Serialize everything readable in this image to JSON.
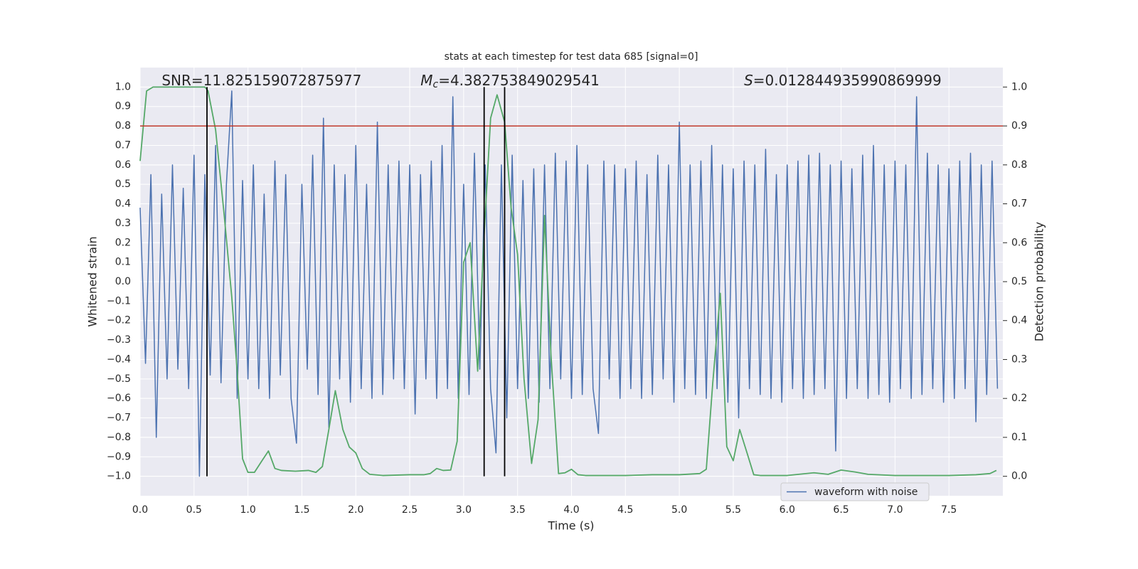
{
  "chart_data": {
    "type": "line",
    "title": "stats at each timestep for test data 685 [signal=0]",
    "xlabel": "Time (s)",
    "ylabel": "Whitened strain",
    "y2label": "Detection probability",
    "annotations": [
      {
        "symbol": "",
        "subscript": "",
        "text": "SNR=11.825159072875977",
        "x": 0.2
      },
      {
        "symbol": "M",
        "subscript": "c",
        "text": "=4.382753849029541",
        "x": 2.6
      },
      {
        "symbol": "S",
        "subscript": "",
        "text": "=0.012844935990869999",
        "x": 5.6
      }
    ],
    "xlim": [
      0,
      8
    ],
    "ylim": [
      -1.1,
      1.1
    ],
    "y2lim": [
      -0.05,
      1.05
    ],
    "xticks": [
      {
        "value": 0,
        "label": "0.0"
      },
      0.5,
      {
        "value": 1,
        "label": "1.0"
      },
      1.5,
      {
        "value": 2,
        "label": "2.0"
      },
      2.5,
      {
        "value": 3,
        "label": "3.0"
      },
      3.5,
      {
        "value": 4,
        "label": "4.0"
      },
      4.5,
      {
        "value": 5,
        "label": "5.0"
      },
      5.5,
      {
        "value": 6,
        "label": "6.0"
      },
      6.5,
      {
        "value": 7,
        "label": "7.0"
      },
      7.5
    ],
    "yticks": [
      {
        "value": 1,
        "label": "1.0"
      },
      0.9,
      0.8,
      0.7,
      0.6,
      0.5,
      0.4,
      0.3,
      0.2,
      0.1,
      {
        "value": 0,
        "label": "0.0"
      },
      {
        "value": -0.1,
        "label": "−0.1"
      },
      {
        "value": -0.2,
        "label": "−0.2"
      },
      {
        "value": -0.3,
        "label": "−0.3"
      },
      {
        "value": -0.4,
        "label": "−0.4"
      },
      {
        "value": -0.5,
        "label": "−0.5"
      },
      {
        "value": -0.6,
        "label": "−0.6"
      },
      {
        "value": -0.7,
        "label": "−0.7"
      },
      {
        "value": -0.8,
        "label": "−0.8"
      },
      {
        "value": -0.9,
        "label": "−0.9"
      },
      {
        "value": -1,
        "label": "−1.0"
      }
    ],
    "y2ticks": [
      {
        "value": 0,
        "label": "0.0"
      },
      0.1,
      0.2,
      0.3,
      0.4,
      0.5,
      0.6,
      0.7,
      0.8,
      0.9,
      {
        "value": 1,
        "label": "1.0"
      }
    ],
    "grid": true,
    "legend": "lower right",
    "vlines": [
      0.62,
      3.19,
      3.38
    ],
    "vline_range": [
      -1,
      1
    ],
    "vline_color": "#000000",
    "hline_y2": 0.9,
    "hline_color": "#c0392b",
    "series": [
      {
        "name": "waveform with noise",
        "color": "#4c72b0",
        "x": [
          0,
          0.05,
          0.1,
          0.15,
          0.2,
          0.25,
          0.3,
          0.35,
          0.4,
          0.45,
          0.5,
          0.55,
          0.6,
          0.65,
          0.7,
          0.75,
          0.8,
          0.85,
          0.9,
          0.95,
          1,
          1.05,
          1.1,
          1.15,
          1.2,
          1.25,
          1.3,
          1.35,
          1.4,
          1.45,
          1.5,
          1.55,
          1.6,
          1.65,
          1.7,
          1.75,
          1.8,
          1.85,
          1.9,
          1.95,
          2,
          2.05,
          2.1,
          2.15,
          2.2,
          2.25,
          2.3,
          2.35,
          2.4,
          2.45,
          2.5,
          2.55,
          2.6,
          2.65,
          2.7,
          2.75,
          2.8,
          2.85,
          2.9,
          2.95,
          3,
          3.05,
          3.1,
          3.15,
          3.2,
          3.25,
          3.3,
          3.35,
          3.4,
          3.45,
          3.5,
          3.55,
          3.6,
          3.65,
          3.7,
          3.75,
          3.8,
          3.85,
          3.9,
          3.95,
          4,
          4.05,
          4.1,
          4.15,
          4.2,
          4.25,
          4.3,
          4.35,
          4.4,
          4.45,
          4.5,
          4.55,
          4.6,
          4.65,
          4.7,
          4.75,
          4.8,
          4.85,
          4.9,
          4.95,
          5,
          5.05,
          5.1,
          5.15,
          5.2,
          5.25,
          5.3,
          5.35,
          5.4,
          5.45,
          5.5,
          5.55,
          5.6,
          5.65,
          5.7,
          5.75,
          5.8,
          5.85,
          5.9,
          5.95,
          6,
          6.05,
          6.1,
          6.15,
          6.2,
          6.25,
          6.3,
          6.35,
          6.4,
          6.45,
          6.5,
          6.55,
          6.6,
          6.65,
          6.7,
          6.75,
          6.8,
          6.85,
          6.9,
          6.95,
          7,
          7.05,
          7.1,
          7.15,
          7.2,
          7.25,
          7.3,
          7.35,
          7.4,
          7.45,
          7.5,
          7.55,
          7.6,
          7.65,
          7.7,
          7.75,
          7.8,
          7.85,
          7.9,
          7.95
        ],
        "values": [
          0.38,
          -0.42,
          0.55,
          -0.8,
          0.45,
          -0.5,
          0.6,
          -0.45,
          0.48,
          -0.55,
          0.65,
          -1.0,
          0.55,
          -0.48,
          0.7,
          -0.52,
          0.5,
          0.98,
          -0.6,
          0.52,
          -0.5,
          0.6,
          -0.55,
          0.45,
          -0.6,
          0.62,
          -0.48,
          0.55,
          -0.6,
          -0.83,
          0.5,
          -0.45,
          0.65,
          -0.58,
          0.84,
          -0.75,
          0.6,
          -0.5,
          0.55,
          -0.62,
          0.7,
          -0.55,
          0.5,
          -0.6,
          0.82,
          -0.58,
          0.6,
          -0.5,
          0.62,
          -0.55,
          0.6,
          -0.68,
          0.55,
          -0.5,
          0.62,
          -0.6,
          0.7,
          -0.55,
          0.95,
          -0.6,
          0.5,
          -0.58,
          0.66,
          -0.45,
          0.6,
          -0.55,
          -0.88,
          0.6,
          -0.7,
          0.65,
          -0.55,
          0.52,
          -0.6,
          0.58,
          -0.62,
          0.6,
          -0.55,
          0.66,
          -0.5,
          0.62,
          -0.6,
          0.7,
          -0.58,
          0.6,
          -0.55,
          -0.78,
          0.62,
          -0.5,
          0.6,
          -0.6,
          0.58,
          -0.55,
          0.62,
          -0.6,
          0.55,
          -0.58,
          0.65,
          -0.5,
          0.6,
          -0.62,
          0.82,
          -0.55,
          0.6,
          -0.58,
          0.62,
          -0.6,
          0.7,
          -0.55,
          0.6,
          -0.62,
          0.58,
          -0.7,
          0.62,
          -0.55,
          0.6,
          -0.58,
          0.68,
          -0.6,
          0.55,
          -0.62,
          0.6,
          -0.55,
          0.62,
          -0.6,
          0.65,
          -0.58,
          0.66,
          -0.55,
          0.6,
          -0.87,
          0.62,
          -0.6,
          0.58,
          -0.55,
          0.65,
          -0.6,
          0.7,
          -0.58,
          0.6,
          -0.62,
          0.62,
          -0.55,
          0.6,
          -0.6,
          0.95,
          -0.58,
          0.66,
          -0.55,
          0.6,
          -0.62,
          0.58,
          -0.6,
          0.62,
          -0.55,
          0.66,
          -0.72,
          0.6,
          -0.58,
          0.62,
          -0.55
        ]
      },
      {
        "color": "#55a868",
        "axis": "y2",
        "x": [
          0,
          0.06,
          0.12,
          0.6,
          0.63,
          0.7,
          0.78,
          0.85,
          0.9,
          0.95,
          1,
          1.06,
          1.13,
          1.19,
          1.25,
          1.31,
          1.44,
          1.56,
          1.63,
          1.69,
          1.75,
          1.81,
          1.88,
          1.94,
          2,
          2.06,
          2.13,
          2.25,
          2.5,
          2.63,
          2.69,
          2.75,
          2.81,
          2.88,
          2.94,
          3,
          3.06,
          3.13,
          3.19,
          3.25,
          3.31,
          3.38,
          3.44,
          3.5,
          3.56,
          3.63,
          3.69,
          3.75,
          3.81,
          3.88,
          3.94,
          4,
          4.06,
          4.13,
          4.5,
          4.75,
          5,
          5.19,
          5.25,
          5.31,
          5.38,
          5.44,
          5.5,
          5.56,
          5.63,
          5.69,
          5.75,
          6,
          6.25,
          6.38,
          6.5,
          6.63,
          6.75,
          7,
          7.5,
          7.75,
          7.88,
          7.94
        ],
        "values": [
          0.81,
          0.99,
          1.0,
          1.0,
          0.99,
          0.89,
          0.67,
          0.46,
          0.27,
          0.045,
          0.01,
          0.01,
          0.04,
          0.065,
          0.02,
          0.015,
          0.013,
          0.015,
          0.01,
          0.025,
          0.12,
          0.22,
          0.12,
          0.075,
          0.06,
          0.02,
          0.005,
          0.002,
          0.004,
          0.004,
          0.007,
          0.02,
          0.015,
          0.016,
          0.09,
          0.55,
          0.6,
          0.27,
          0.62,
          0.92,
          0.98,
          0.91,
          0.69,
          0.57,
          0.25,
          0.033,
          0.145,
          0.67,
          0.31,
          0.007,
          0.009,
          0.018,
          0.004,
          0.002,
          0.002,
          0.004,
          0.004,
          0.007,
          0.018,
          0.24,
          0.47,
          0.076,
          0.04,
          0.12,
          0.058,
          0.004,
          0.002,
          0.002,
          0.009,
          0.005,
          0.016,
          0.011,
          0.005,
          0.002,
          0.002,
          0.004,
          0.007,
          0.015
        ]
      }
    ]
  }
}
